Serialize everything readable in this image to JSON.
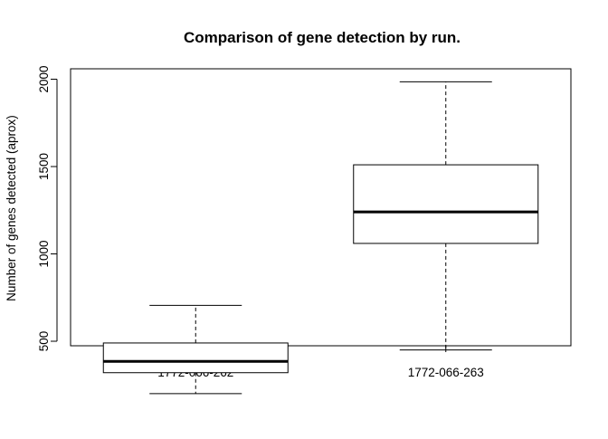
{
  "chart_data": {
    "type": "boxplot",
    "title": "Comparison of gene detection by run.",
    "xlabel": "",
    "ylabel": "Number of genes detected (aprox)",
    "ylim": [
      140,
      2070
    ],
    "y_ticks": [
      500,
      1000,
      1500,
      2000
    ],
    "y_tick_labels": [
      "500",
      "1000",
      "1500",
      "2000"
    ],
    "categories": [
      "1772-066-262",
      "1772-066-263"
    ],
    "series": [
      {
        "category": "1772-066-262",
        "whisker_low": 200,
        "q1": 320,
        "median": 385,
        "q3": 490,
        "whisker_high": 705
      },
      {
        "category": "1772-066-263",
        "whisker_low": 450,
        "q1": 1060,
        "median": 1240,
        "q3": 1510,
        "whisker_high": 1985
      }
    ],
    "grid": false,
    "legend": "none"
  },
  "colors": {
    "box_fill": "#ffffff",
    "stroke": "#000000",
    "background": "#ffffff"
  }
}
